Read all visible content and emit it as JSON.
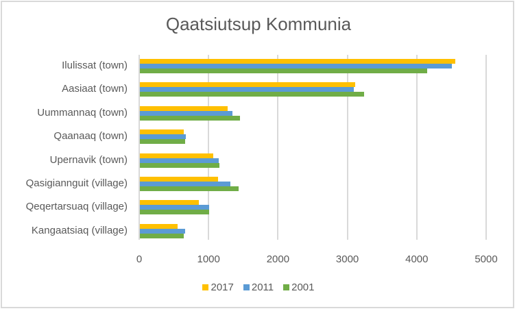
{
  "chart_data": {
    "type": "bar",
    "orientation": "horizontal",
    "title": "Qaatsiutsup Kommunia",
    "xlabel": "",
    "ylabel": "",
    "xlim": [
      0,
      5000
    ],
    "xticks": [
      0,
      1000,
      2000,
      3000,
      4000,
      5000
    ],
    "grid": true,
    "legend_position": "bottom",
    "categories": [
      "Ilulissat (town)",
      "Aasiaat (town)",
      "Uummannaq (town)",
      "Qaanaaq (town)",
      "Upernavik (town)",
      "Qasigiannguit (village)",
      "Qeqertarsuaq (village)",
      "Kangaatsiaq (village)"
    ],
    "series": [
      {
        "name": "2017",
        "color": "#FFC000",
        "values": [
          4550,
          3100,
          1260,
          630,
          1060,
          1130,
          850,
          540
        ]
      },
      {
        "name": "2011",
        "color": "#5B9BD5",
        "values": [
          4500,
          3080,
          1330,
          660,
          1140,
          1300,
          1000,
          650
        ]
      },
      {
        "name": "2001",
        "color": "#70AD47",
        "values": [
          4140,
          3230,
          1440,
          650,
          1150,
          1420,
          1000,
          630
        ]
      }
    ]
  },
  "tick_labels": [
    "0",
    "1000",
    "2000",
    "3000",
    "4000",
    "5000"
  ],
  "legend": [
    {
      "label": "2017",
      "color": "#FFC000"
    },
    {
      "label": "2011",
      "color": "#5B9BD5"
    },
    {
      "label": "2001",
      "color": "#70AD47"
    }
  ]
}
